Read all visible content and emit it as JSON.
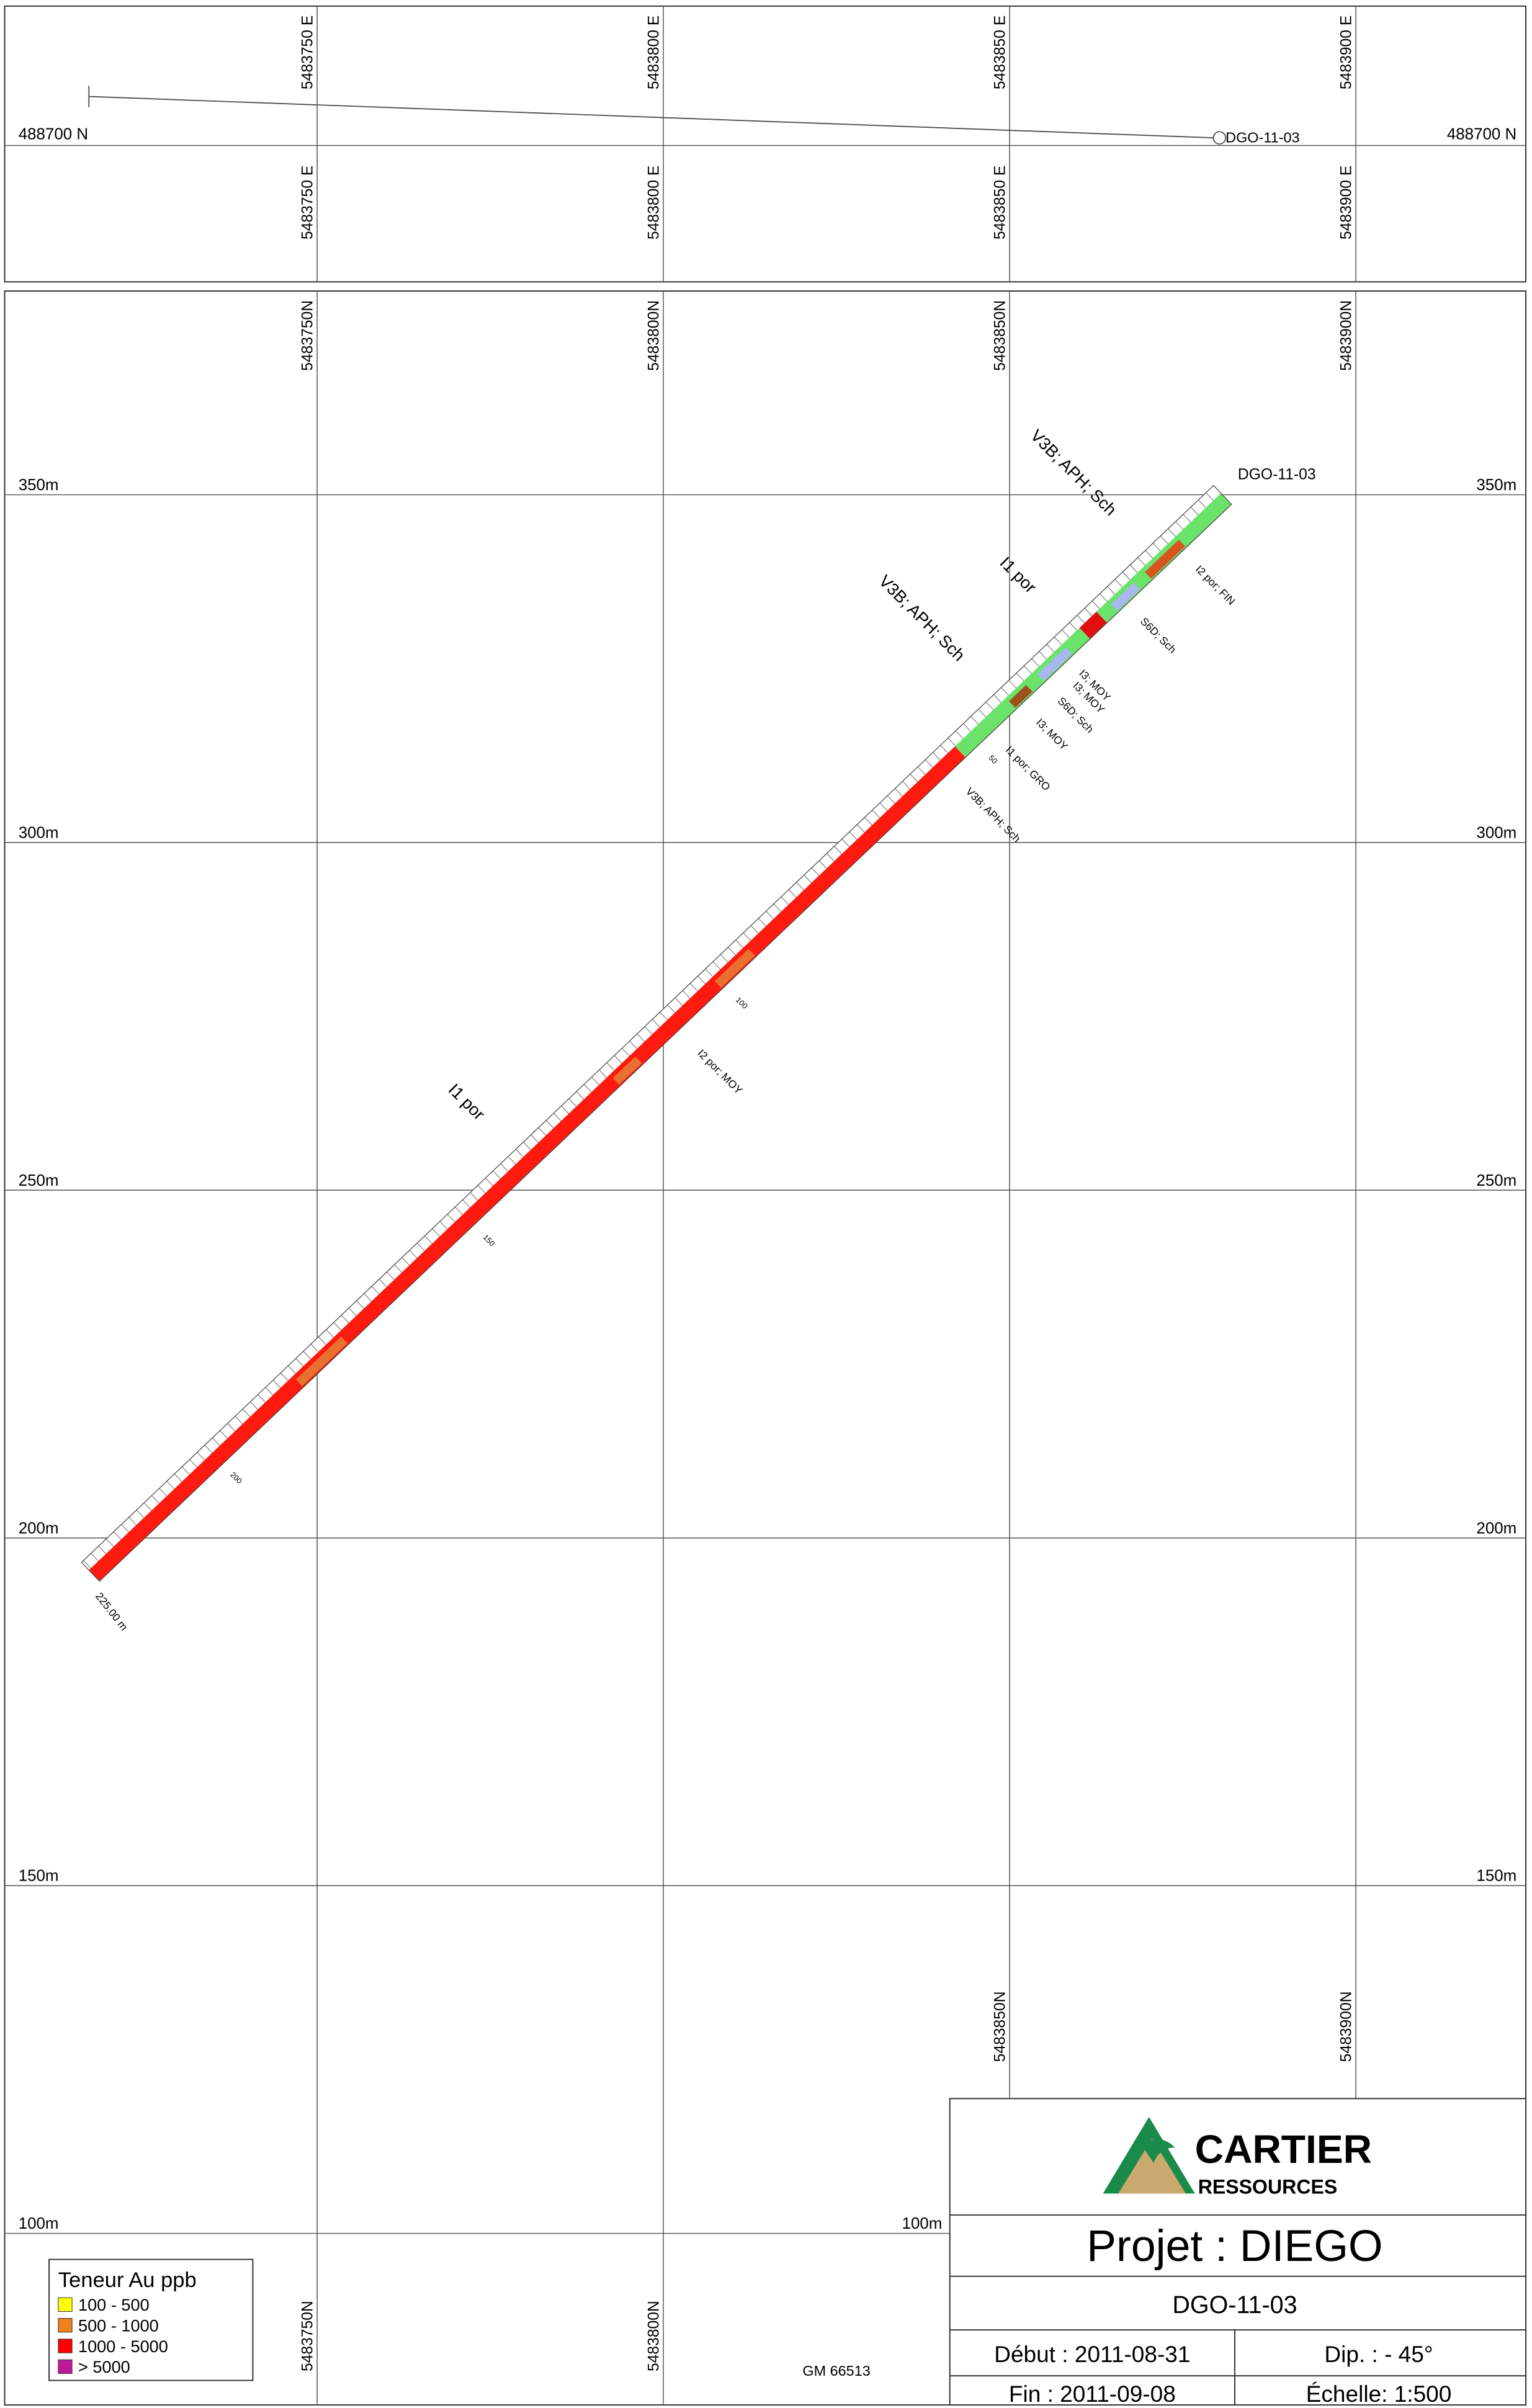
{
  "plan": {
    "eastings_top": [
      "5483750 E",
      "5483800 E",
      "5483850 E",
      "5483900 E"
    ],
    "eastings_bottom": [
      "5483750 E",
      "5483800 E",
      "5483850 E",
      "5483900 E"
    ],
    "northing_left": "488700 N",
    "northing_right": "488700 N",
    "hole": "DGO-11-03"
  },
  "section": {
    "northings_top": [
      "5483750N",
      "5483800N",
      "5483850N",
      "5483900N"
    ],
    "northings_bottom_right": [
      "5483850N",
      "5483900N"
    ],
    "northings_bottom_left": [
      "5483750N",
      "5483800N"
    ],
    "elevations_left": [
      "350m",
      "300m",
      "250m",
      "200m",
      "150m",
      "100m"
    ],
    "elevations_right": [
      "350m",
      "300m",
      "250m",
      "200m",
      "150m",
      "100m"
    ],
    "hole": "DGO-11-03",
    "end_depth": "225.00 m",
    "depth_ticks": [
      "50",
      "100",
      "150",
      "200"
    ],
    "lithology_labels": [
      "V3B; APH; Sch",
      "I1 por",
      "V3B; APH; Sch",
      "I2 por; FIN",
      "S6D; Sch",
      "I3; MOY",
      "I3; MOY",
      "S6D; Sch",
      "I3; MOY",
      "I1 por; GRO",
      "V3B; APH; Sch",
      "I2 por; MOY",
      "I1 por"
    ]
  },
  "legend": {
    "title": "Teneur Au ppb",
    "items": [
      {
        "label": "100 - 500",
        "color": "#ffff00"
      },
      {
        "label": "500 - 1000",
        "color": "#f07f1f"
      },
      {
        "label": "1000 - 5000",
        "color": "#ff0000"
      },
      {
        "label": "> 5000",
        "color": "#c0189a"
      }
    ]
  },
  "reference": "GM 66513",
  "title_block": {
    "logo_name": "CARTIER",
    "logo_sub": "RESSOURCES",
    "project": "Projet : DIEGO",
    "hole": "DGO-11-03",
    "start": "Début : 2011-08-31",
    "dip": "Dip. : - 45°",
    "end": "Fin : 2011-09-08",
    "scale": "Échelle: 1:500"
  }
}
